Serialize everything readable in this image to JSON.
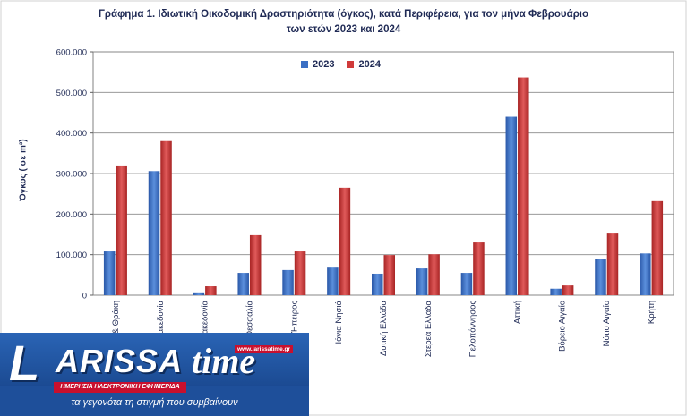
{
  "title_line1": "Γράφημα 1.  Ιδιωτική Οικοδομική Δραστηριότητα (όγκος), κατά Περιφέρεια, για τον μήνα Φεβρουάριο",
  "title_line2": "των ετών 2023 και 2024",
  "chart_data": {
    "type": "bar",
    "ylabel": "Όγκος ( σε m³)",
    "ylim": [
      0,
      600000
    ],
    "ytick_labels": [
      "0",
      "100.000",
      "200.000",
      "300.000",
      "400.000",
      "500.000",
      "600.000"
    ],
    "yticks": [
      0,
      100000,
      200000,
      300000,
      400000,
      500000,
      600000
    ],
    "categories": [
      "Ανατ. Μακεδονία & Θράκη",
      "Κεντρική Μακεδονία",
      "Δυτική Μακεδονία",
      "Θεσσαλία",
      "Ήπειρος",
      "Ιόνια Νησιά",
      "Δυτική Ελλάδα",
      "Στερεά Ελλάδα",
      "Πελοπόννησος",
      "Αττική",
      "Βόρειο Αιγαίο",
      "Νότιο Αιγαίο",
      "Κρήτη"
    ],
    "series": [
      {
        "name": "2023",
        "color": "#3a6fc4",
        "values": [
          108000,
          306000,
          7000,
          55000,
          62000,
          68000,
          53000,
          66000,
          55000,
          440000,
          16000,
          89000,
          103000
        ]
      },
      {
        "name": "2024",
        "color": "#d03a3a",
        "values": [
          320000,
          380000,
          22000,
          148000,
          108000,
          265000,
          99000,
          101000,
          130000,
          537000,
          24000,
          152000,
          232000
        ]
      }
    ],
    "legend_position": "top-center",
    "grid": true
  },
  "logo": {
    "letter": "L",
    "word": "ARISSA",
    "time": "time",
    "url": "www.larissatime.gr",
    "tagline": "ΗΜΕΡΗΣΙΑ ΗΛΕΚΤΡΟΝΙΚΗ ΕΦΗΜΕΡΙΔΑ",
    "slogan": "τα γεγονότα τη στιγμή που συμβαίνουν"
  }
}
